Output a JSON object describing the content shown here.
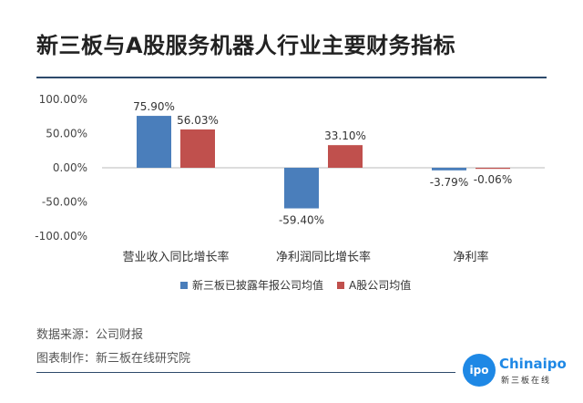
{
  "title": "新三板与A股服务机器人行业主要财务指标",
  "chart_data": {
    "type": "bar",
    "categories": [
      "营业收入同比增长率",
      "净利润同比增长率",
      "净利率"
    ],
    "series": [
      {
        "name": "新三板已披露年报公司均值",
        "values": [
          75.9,
          -59.4,
          -3.79
        ],
        "labels": [
          "75.90%",
          "-59.40%",
          "-3.79%"
        ],
        "color": "#4a7ebb"
      },
      {
        "name": "A股公司均值",
        "values": [
          56.03,
          33.1,
          -0.06
        ],
        "labels": [
          "56.03%",
          "33.10%",
          "-0.06%"
        ],
        "color": "#c0504d"
      }
    ],
    "yticks": [
      100,
      50,
      0,
      -50,
      -100
    ],
    "ytick_labels": [
      "100.00%",
      "50.00%",
      "0.00%",
      "-50.00%",
      "-100.00%"
    ],
    "ylim": [
      -100,
      100
    ],
    "grid": false,
    "legend": "bottom"
  },
  "footer": {
    "source": "数据来源：公司财报",
    "author": "图表制作：新三板在线研究院"
  },
  "logo": {
    "mark": "ipo",
    "name": "Chinaipo",
    "sub": "新三板在线"
  }
}
